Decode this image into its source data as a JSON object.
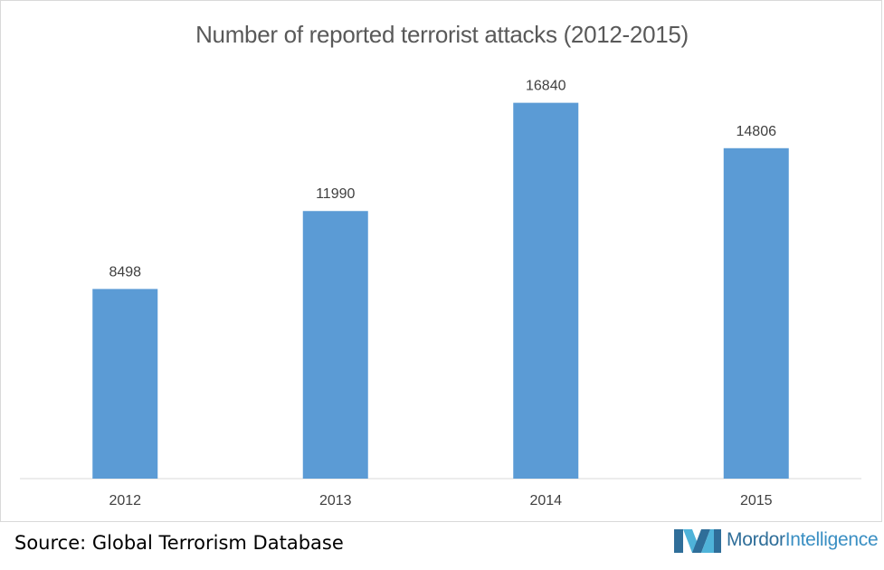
{
  "chart_data": {
    "type": "bar",
    "title": "Number of reported terrorist attacks (2012-2015)",
    "categories": [
      "2012",
      "2013",
      "2014",
      "2015"
    ],
    "values": [
      8498,
      11990,
      16840,
      14806
    ],
    "ylim": [
      0,
      18000
    ],
    "grid": false,
    "legend": "none",
    "data_labels": true
  },
  "footer": {
    "source": "Source: Global Terrorism Database",
    "brand_part1": "Mordor",
    "brand_part2": "Intelligence"
  },
  "colors": {
    "bar": "#5b9bd5",
    "title": "#595959",
    "label": "#404040",
    "axis": "#d9d9d9",
    "brand": "#3a8fc3"
  },
  "icons": {
    "brand_logo": "mordor-intelligence-logo-icon"
  }
}
